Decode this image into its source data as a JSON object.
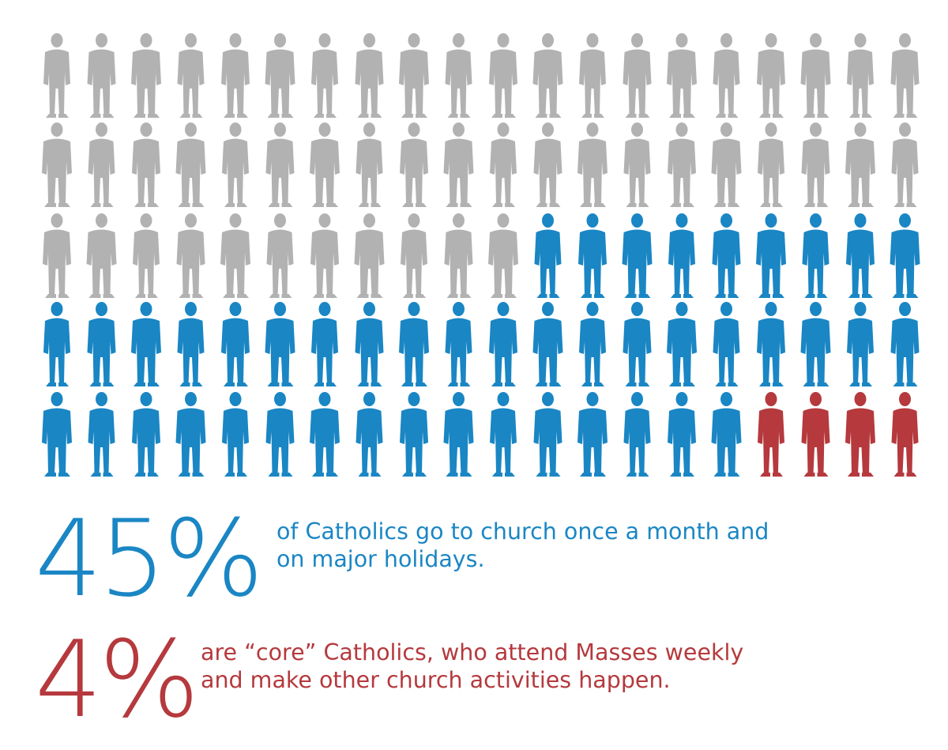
{
  "chart_data": {
    "type": "pictogram",
    "unit_count": 100,
    "series": [
      {
        "name": "",
        "value": 51,
        "color": "#b2b2b2"
      },
      {
        "value": 45,
        "color": "#1a86c4"
      },
      {
        "value": 4,
        "color": "#b5393d"
      }
    ]
  },
  "stats": [
    {
      "value": "45%",
      "caption_lines": [
        "of Catholics go to church once a month and",
        "on major holidays."
      ],
      "color": "#1a86c4"
    },
    {
      "value": "4%",
      "caption_lines": [
        "are “core” Catholics, who attend Masses weekly",
        "and make other church activities happen."
      ],
      "color": "#b5393d"
    }
  ]
}
